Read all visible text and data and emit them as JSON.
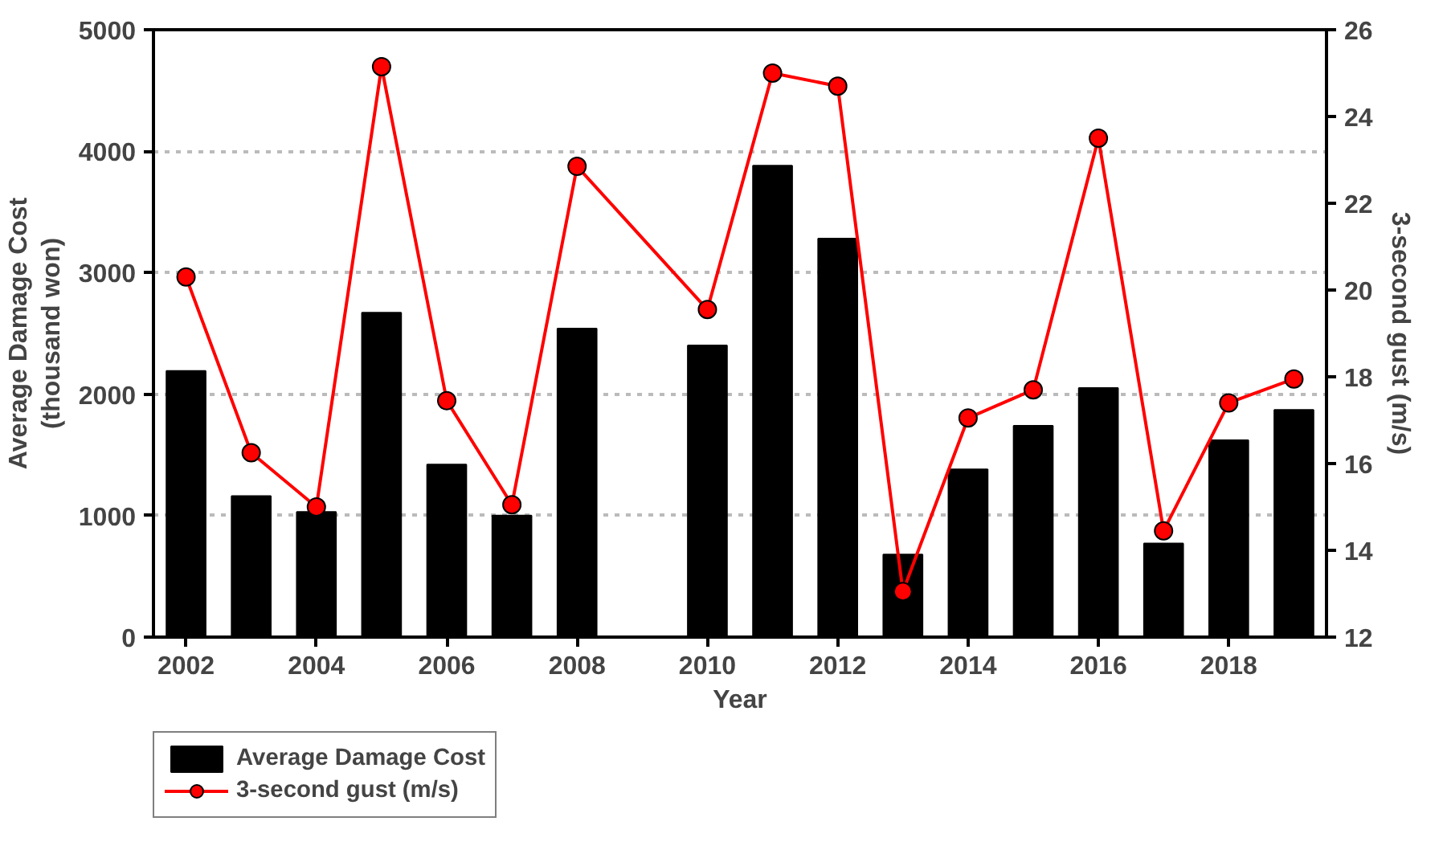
{
  "chart_data": {
    "type": "bar",
    "xlabel": "Year",
    "ylabel": "Average Damage Cost\n(thousand won)",
    "y2label": "3-second gust (m/s)",
    "x": [
      2002,
      2003,
      2004,
      2005,
      2006,
      2007,
      2008,
      2010,
      2011,
      2012,
      2013,
      2014,
      2015,
      2016,
      2017,
      2018,
      2019
    ],
    "series": [
      {
        "name": "Average Damage Cost",
        "color": "#000000",
        "values": [
          2190,
          1160,
          1030,
          2670,
          1420,
          1000,
          2540,
          2400,
          3880,
          3280,
          680,
          1380,
          1740,
          2050,
          770,
          1620,
          1870
        ]
      },
      {
        "name": "3-second gust (m/s)",
        "type": "line",
        "axis": "y2",
        "color": "#ff0000",
        "marker": "circle",
        "values": [
          20.3,
          16.25,
          15.0,
          25.15,
          17.45,
          15.05,
          22.85,
          19.55,
          25.0,
          24.7,
          13.05,
          17.05,
          17.7,
          23.5,
          14.45,
          17.4,
          17.95
        ]
      }
    ],
    "xlim": [
      2001.5,
      2019.5
    ],
    "xticks": [
      2002,
      2004,
      2006,
      2008,
      2010,
      2012,
      2014,
      2016,
      2018
    ],
    "ylim": [
      0,
      5000
    ],
    "yticks": [
      0,
      1000,
      2000,
      3000,
      4000,
      5000
    ],
    "y2lim": [
      12,
      26
    ],
    "y2ticks": [
      12,
      14,
      16,
      18,
      20,
      22,
      24,
      26
    ],
    "grid": "y",
    "legend": "bottom left"
  }
}
